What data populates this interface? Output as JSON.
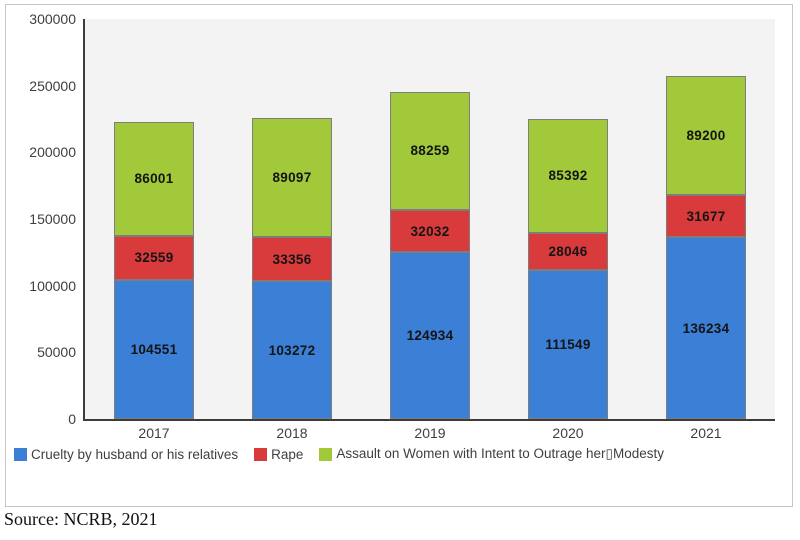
{
  "chart_data": {
    "type": "bar",
    "stacked": true,
    "title": "",
    "xlabel": "",
    "ylabel": "",
    "categories": [
      "2017",
      "2018",
      "2019",
      "2020",
      "2021"
    ],
    "series": [
      {
        "name": "Cruelty by husband or his relatives",
        "color": "#3b7fd6",
        "values": [
          104551,
          103272,
          124934,
          111549,
          136234
        ]
      },
      {
        "name": "Rape",
        "color": "#d93a3c",
        "values": [
          32559,
          33356,
          32032,
          28046,
          31677
        ]
      },
      {
        "name": "Assault on Women with Intent to Outrage her▯Modesty",
        "color": "#a2c93a",
        "values": [
          86001,
          89097,
          88259,
          85392,
          89200
        ]
      }
    ],
    "ylim": [
      0,
      300000
    ],
    "yticks": [
      0,
      50000,
      100000,
      150000,
      200000,
      250000,
      300000
    ],
    "grid": false,
    "legend_position": "bottom",
    "data_labels": true
  },
  "colors": {
    "plot_background": "#f3f3f3",
    "axis_line": "#3c3c3c",
    "figure_border": "#c6c6c6",
    "value_label_text": "#141414",
    "tick_label_text": "#3f3f3f"
  },
  "source_note": "Source: NCRB, 2021"
}
